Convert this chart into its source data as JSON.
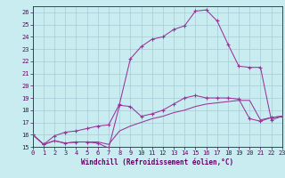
{
  "background_color": "#c8ecf0",
  "grid_color": "#a8ccd4",
  "line_color": "#993399",
  "xlabel": "Windchill (Refroidissement éolien,°C)",
  "xlim": [
    0,
    23
  ],
  "ylim": [
    15,
    26.5
  ],
  "yticks": [
    15,
    16,
    17,
    18,
    19,
    20,
    21,
    22,
    23,
    24,
    25,
    26
  ],
  "xticks": [
    0,
    1,
    2,
    3,
    4,
    5,
    6,
    7,
    8,
    9,
    10,
    11,
    12,
    13,
    14,
    15,
    16,
    17,
    18,
    19,
    20,
    21,
    22,
    23
  ],
  "line_top_x": [
    0,
    1,
    2,
    3,
    4,
    5,
    6,
    7,
    8,
    9,
    10,
    11,
    12,
    13,
    14,
    15,
    16,
    17,
    18,
    19,
    20,
    21,
    22,
    23
  ],
  "line_top_y": [
    16.0,
    15.2,
    15.9,
    16.2,
    16.3,
    16.5,
    16.7,
    16.8,
    18.5,
    22.2,
    23.2,
    23.8,
    24.0,
    24.6,
    24.9,
    26.1,
    26.2,
    25.3,
    23.4,
    21.6,
    21.5,
    21.5,
    17.2,
    17.5
  ],
  "line_mid_x": [
    0,
    1,
    2,
    3,
    4,
    5,
    6,
    7,
    8,
    9,
    10,
    11,
    12,
    13,
    14,
    15,
    16,
    17,
    18,
    19,
    20,
    21,
    22,
    23
  ],
  "line_mid_y": [
    16.0,
    15.2,
    15.5,
    15.3,
    15.4,
    15.4,
    15.3,
    14.9,
    18.4,
    18.3,
    17.5,
    17.7,
    18.0,
    18.5,
    19.0,
    19.2,
    19.0,
    19.0,
    19.0,
    18.9,
    17.3,
    17.1,
    17.4,
    17.5
  ],
  "line_bot_x": [
    0,
    1,
    2,
    3,
    4,
    5,
    6,
    7,
    8,
    9,
    10,
    11,
    12,
    13,
    14,
    15,
    16,
    17,
    18,
    19,
    20,
    21,
    22,
    23
  ],
  "line_bot_y": [
    16.0,
    15.2,
    15.5,
    15.3,
    15.4,
    15.4,
    15.4,
    15.2,
    16.3,
    16.7,
    17.0,
    17.3,
    17.5,
    17.8,
    18.0,
    18.3,
    18.5,
    18.6,
    18.7,
    18.8,
    18.8,
    17.2,
    17.4,
    17.5
  ],
  "tick_label_color": "#660066",
  "xlabel_color": "#660066",
  "spine_color": "#660066",
  "tick_fontsize": 5.0,
  "xlabel_fontsize": 5.5
}
